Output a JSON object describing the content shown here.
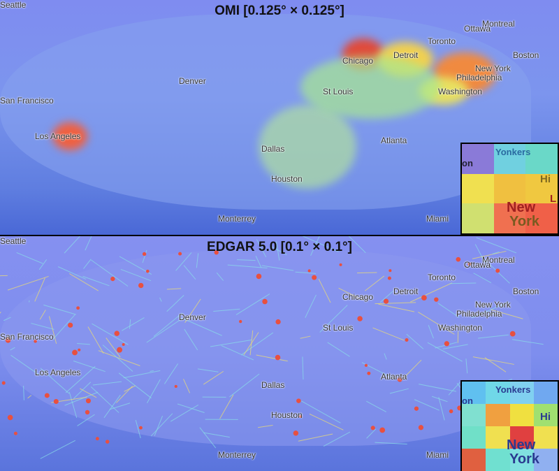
{
  "panels": [
    {
      "title": "OMI [0.125° × 0.125°]",
      "inset": {
        "labels": [
          "Yonkers",
          "on",
          "Hi",
          "New",
          "York",
          "L"
        ],
        "colors": [
          "#8a7ad8",
          "#70d0e0",
          "#6ad8c8",
          "#f0e050",
          "#f0c040",
          "#f0c840",
          "#d0e070",
          "#f07050",
          "#f06048"
        ]
      }
    },
    {
      "title": "EDGAR 5.0 [0.1° × 0.1°]",
      "inset": {
        "labels": [
          "Yonkers",
          "on",
          "Hi",
          "New",
          "York"
        ],
        "colors": [
          "#60c0f0",
          "#70d8e8",
          "#80d0f0",
          "#70a8f0",
          "#80e0d0",
          "#f0a040",
          "#f0e040",
          "#a0e070",
          "#70e0c8",
          "#f0e050",
          "#e04040",
          "#f0e050",
          "#e06040",
          "#70e0d0",
          "#80e0e0",
          "#90b0f0"
        ]
      }
    }
  ],
  "cities": [
    "Seattle",
    "Montreal",
    "Ottawa",
    "Toronto",
    "Detroit",
    "Chicago",
    "Boston",
    "New York",
    "Philadelphia",
    "Washington",
    "St Louis",
    "Denver",
    "San Francisco",
    "Los Angeles",
    "Dallas",
    "Atlanta",
    "Houston",
    "Monterrey",
    "Miami"
  ],
  "colors": {
    "low": "#7f8cf0",
    "mid": "#f0e050",
    "high": "#e04040"
  }
}
